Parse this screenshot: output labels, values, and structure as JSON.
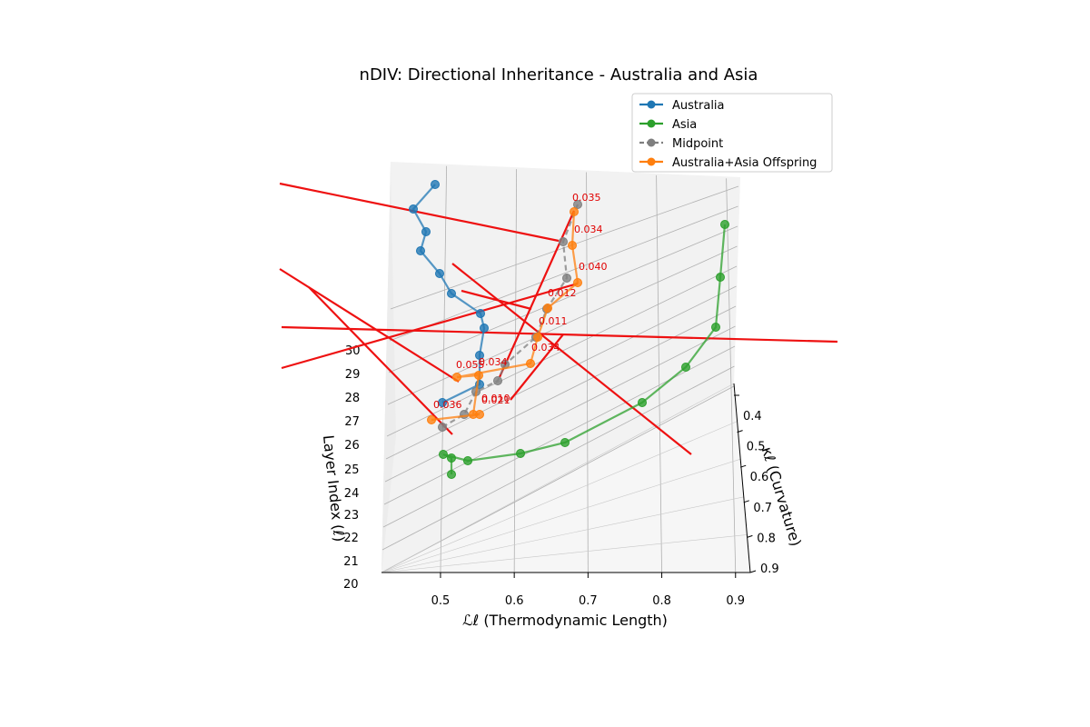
{
  "chart_data": {
    "type": "line",
    "projection": "3d",
    "title": "nDIV: Directional Inheritance - Australia and Asia",
    "xlabel": "ℒℓ (Thermodynamic Length)",
    "ylabel": "κℓ (Curvature)",
    "zlabel": "Layer Index (ℓ)",
    "x_ticks": [
      "0.5",
      "0.6",
      "0.7",
      "0.8",
      "0.9"
    ],
    "y_ticks": [
      "0.4",
      "0.5",
      "0.6",
      "0.7",
      "0.8",
      "0.9"
    ],
    "z_ticks": [
      "20",
      "21",
      "22",
      "23",
      "24",
      "25",
      "26",
      "27",
      "28",
      "29",
      "30"
    ],
    "legend_position": "top-right",
    "series": [
      {
        "name": "Australia",
        "color": "#1f77b4",
        "style": "solid",
        "points": [
          [
            0.51,
            0.55,
            27.0
          ],
          [
            0.56,
            0.58,
            27.8
          ],
          [
            0.56,
            0.45,
            28.5
          ],
          [
            0.565,
            0.4,
            29.2
          ],
          [
            0.56,
            0.38,
            29.7
          ],
          [
            0.515,
            0.38,
            30.2
          ],
          [
            0.5,
            0.36,
            30.7
          ],
          [
            0.47,
            0.38,
            31.2
          ],
          [
            0.475,
            0.32,
            31.6
          ],
          [
            0.46,
            0.32,
            32.0
          ],
          [
            0.485,
            0.25,
            32.5
          ]
        ]
      },
      {
        "name": "Asia",
        "color": "#2ca02c",
        "style": "solid",
        "points": [
          [
            0.52,
            0.8,
            24.3
          ],
          [
            0.52,
            0.9,
            24.3
          ],
          [
            0.51,
            0.85,
            24.5
          ],
          [
            0.545,
            0.85,
            24.7
          ],
          [
            0.615,
            0.85,
            25.0
          ],
          [
            0.68,
            0.79,
            25.5
          ],
          [
            0.785,
            0.77,
            27.0
          ],
          [
            0.845,
            0.76,
            28.3
          ],
          [
            0.89,
            0.78,
            29.4
          ],
          [
            0.89,
            0.7,
            30.2
          ],
          [
            0.9,
            0.7,
            31.4
          ]
        ]
      },
      {
        "name": "Midpoint",
        "color": "#7f7f7f",
        "style": "dashed",
        "points": [
          [
            0.515,
            0.78,
            26.4
          ],
          [
            0.545,
            0.63,
            26.8
          ],
          [
            0.555,
            0.5,
            27.6
          ],
          [
            0.59,
            0.5,
            28.1
          ],
          [
            0.6,
            0.42,
            28.6
          ],
          [
            0.635,
            0.4,
            29.2
          ],
          [
            0.65,
            0.3,
            29.6
          ],
          [
            0.675,
            0.3,
            30.4
          ],
          [
            0.675,
            0.28,
            30.9
          ],
          [
            0.685,
            0.26,
            31.6
          ]
        ]
      },
      {
        "name": "Australia+Asia Offspring",
        "color": "#ff7f0e",
        "style": "solid",
        "points": [
          [
            0.5,
            0.8,
            26.6
          ],
          [
            0.565,
            0.6,
            26.9
          ],
          [
            0.55,
            0.55,
            27.3
          ],
          [
            0.555,
            0.52,
            27.8
          ],
          [
            0.5,
            0.5,
            28.3
          ],
          [
            0.63,
            0.46,
            28.6
          ],
          [
            0.64,
            0.42,
            29.2
          ],
          [
            0.655,
            0.4,
            29.8
          ],
          [
            0.695,
            0.33,
            30.3
          ],
          [
            0.69,
            0.3,
            30.9
          ],
          [
            0.685,
            0.28,
            31.6
          ]
        ]
      }
    ],
    "annotations": [
      "0.035",
      "0.034",
      "0.040",
      "0.012",
      "0.011",
      "0.034",
      "0.055",
      "0.034",
      "0.010",
      "0.036",
      "0.021"
    ]
  }
}
